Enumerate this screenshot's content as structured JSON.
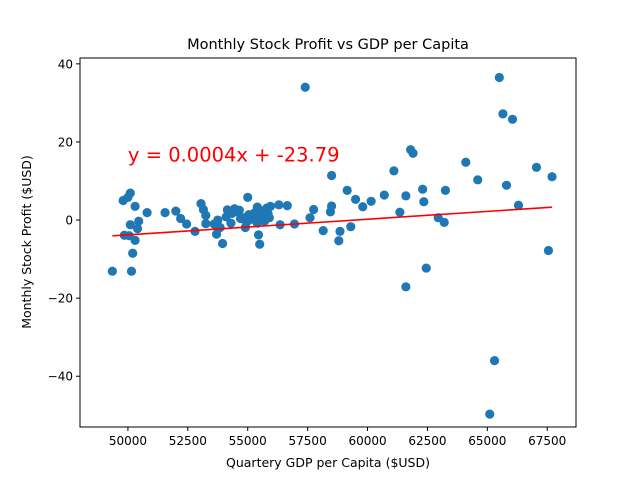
{
  "chart_data": {
    "type": "scatter",
    "title": "Monthly Stock Profit vs GDP per Capita",
    "xlabel": "Quartery GDP per Capita ($USD)",
    "ylabel": "Monthly Stock Profit ($USD)",
    "xlim": [
      48000,
      68700
    ],
    "ylim": [
      -53,
      41.5
    ],
    "x_ticks": [
      50000,
      52500,
      55000,
      57500,
      60000,
      62500,
      65000,
      67500
    ],
    "x_tick_labels": [
      "50000",
      "52500",
      "55000",
      "57500",
      "60000",
      "62500",
      "65000",
      "67500"
    ],
    "y_ticks": [
      -40,
      -20,
      0,
      20,
      40
    ],
    "y_tick_labels": [
      "−40",
      "−20",
      "0",
      "20",
      "40"
    ],
    "grid": false,
    "series": [
      {
        "color": "#1f77b4",
        "points": [
          {
            "x": 49350,
            "y": -13.1
          },
          {
            "x": 49800,
            "y": 5.0
          },
          {
            "x": 49850,
            "y": -3.9
          },
          {
            "x": 50000,
            "y": 5.8
          },
          {
            "x": 50050,
            "y": -4.0
          },
          {
            "x": 50100,
            "y": 6.9
          },
          {
            "x": 50100,
            "y": -1.2
          },
          {
            "x": 50150,
            "y": -13.1
          },
          {
            "x": 50200,
            "y": -8.5
          },
          {
            "x": 50300,
            "y": 3.5
          },
          {
            "x": 50300,
            "y": -5.2
          },
          {
            "x": 50400,
            "y": -2.2
          },
          {
            "x": 50450,
            "y": -0.3
          },
          {
            "x": 50800,
            "y": 1.9
          },
          {
            "x": 51550,
            "y": 1.9
          },
          {
            "x": 52000,
            "y": 2.3
          },
          {
            "x": 52200,
            "y": 0.4
          },
          {
            "x": 52450,
            "y": -1.0
          },
          {
            "x": 52800,
            "y": -2.9
          },
          {
            "x": 53050,
            "y": 4.2
          },
          {
            "x": 53150,
            "y": 2.7
          },
          {
            "x": 53250,
            "y": 1.2
          },
          {
            "x": 53250,
            "y": -0.9
          },
          {
            "x": 53600,
            "y": -1.0
          },
          {
            "x": 53700,
            "y": -3.6
          },
          {
            "x": 53750,
            "y": 0.0
          },
          {
            "x": 53850,
            "y": -1.9
          },
          {
            "x": 53950,
            "y": -6.0
          },
          {
            "x": 54100,
            "y": 0.8
          },
          {
            "x": 54150,
            "y": 2.6
          },
          {
            "x": 54300,
            "y": -0.8
          },
          {
            "x": 54350,
            "y": 1.7
          },
          {
            "x": 54450,
            "y": 2.9
          },
          {
            "x": 54550,
            "y": 2.2
          },
          {
            "x": 54650,
            "y": 2.5
          },
          {
            "x": 54700,
            "y": 0.4
          },
          {
            "x": 54850,
            "y": 0.6
          },
          {
            "x": 54900,
            "y": -1.9
          },
          {
            "x": 54950,
            "y": -0.6
          },
          {
            "x": 55000,
            "y": 5.8
          },
          {
            "x": 55050,
            "y": 1.4
          },
          {
            "x": 55150,
            "y": 0.2
          },
          {
            "x": 55200,
            "y": 1.0
          },
          {
            "x": 55300,
            "y": 1.9
          },
          {
            "x": 55350,
            "y": 0.6
          },
          {
            "x": 55400,
            "y": 3.3
          },
          {
            "x": 55400,
            "y": -0.8
          },
          {
            "x": 55450,
            "y": -3.8
          },
          {
            "x": 55500,
            "y": -6.2
          },
          {
            "x": 55550,
            "y": 0.8
          },
          {
            "x": 55600,
            "y": 1.3
          },
          {
            "x": 55650,
            "y": 2.4
          },
          {
            "x": 55700,
            "y": -0.3
          },
          {
            "x": 55800,
            "y": 3.1
          },
          {
            "x": 55850,
            "y": 1.6
          },
          {
            "x": 55900,
            "y": 0.6
          },
          {
            "x": 55950,
            "y": 3.5
          },
          {
            "x": 56300,
            "y": 3.9
          },
          {
            "x": 56350,
            "y": -1.2
          },
          {
            "x": 56650,
            "y": 3.7
          },
          {
            "x": 56950,
            "y": -1.0
          },
          {
            "x": 57400,
            "y": 34.0
          },
          {
            "x": 57600,
            "y": 0.6
          },
          {
            "x": 57750,
            "y": 2.7
          },
          {
            "x": 58150,
            "y": -2.7
          },
          {
            "x": 58450,
            "y": 2.1
          },
          {
            "x": 58500,
            "y": 3.6
          },
          {
            "x": 58500,
            "y": 11.4
          },
          {
            "x": 58800,
            "y": -5.3
          },
          {
            "x": 58850,
            "y": -2.9
          },
          {
            "x": 59150,
            "y": 7.6
          },
          {
            "x": 59300,
            "y": -1.7
          },
          {
            "x": 59500,
            "y": 5.3
          },
          {
            "x": 59800,
            "y": 3.4
          },
          {
            "x": 60150,
            "y": 4.8
          },
          {
            "x": 60700,
            "y": 6.4
          },
          {
            "x": 61100,
            "y": 12.6
          },
          {
            "x": 61350,
            "y": 2.0
          },
          {
            "x": 61600,
            "y": 6.2
          },
          {
            "x": 61600,
            "y": -17.1
          },
          {
            "x": 61800,
            "y": 18.0
          },
          {
            "x": 61900,
            "y": 17.1
          },
          {
            "x": 62300,
            "y": 7.9
          },
          {
            "x": 62350,
            "y": 4.7
          },
          {
            "x": 62450,
            "y": -12.3
          },
          {
            "x": 62950,
            "y": 0.6
          },
          {
            "x": 63200,
            "y": -0.6
          },
          {
            "x": 63250,
            "y": 7.6
          },
          {
            "x": 64100,
            "y": 14.8
          },
          {
            "x": 64600,
            "y": 10.3
          },
          {
            "x": 65100,
            "y": -49.7
          },
          {
            "x": 65300,
            "y": -36.0
          },
          {
            "x": 65500,
            "y": 36.5
          },
          {
            "x": 65650,
            "y": 27.2
          },
          {
            "x": 65800,
            "y": 8.9
          },
          {
            "x": 66050,
            "y": 25.8
          },
          {
            "x": 66300,
            "y": 3.8
          },
          {
            "x": 67050,
            "y": 13.5
          },
          {
            "x": 67550,
            "y": -7.8
          },
          {
            "x": 67700,
            "y": 11.1
          }
        ]
      }
    ],
    "regression": {
      "color": "#ff0000",
      "slope": 0.0004,
      "intercept": -23.79,
      "x_start": 49350,
      "x_end": 67700
    },
    "annotation": {
      "text": "y = 0.0004x + -23.79",
      "x": 50000,
      "y": 15,
      "color": "#ff0000"
    }
  }
}
